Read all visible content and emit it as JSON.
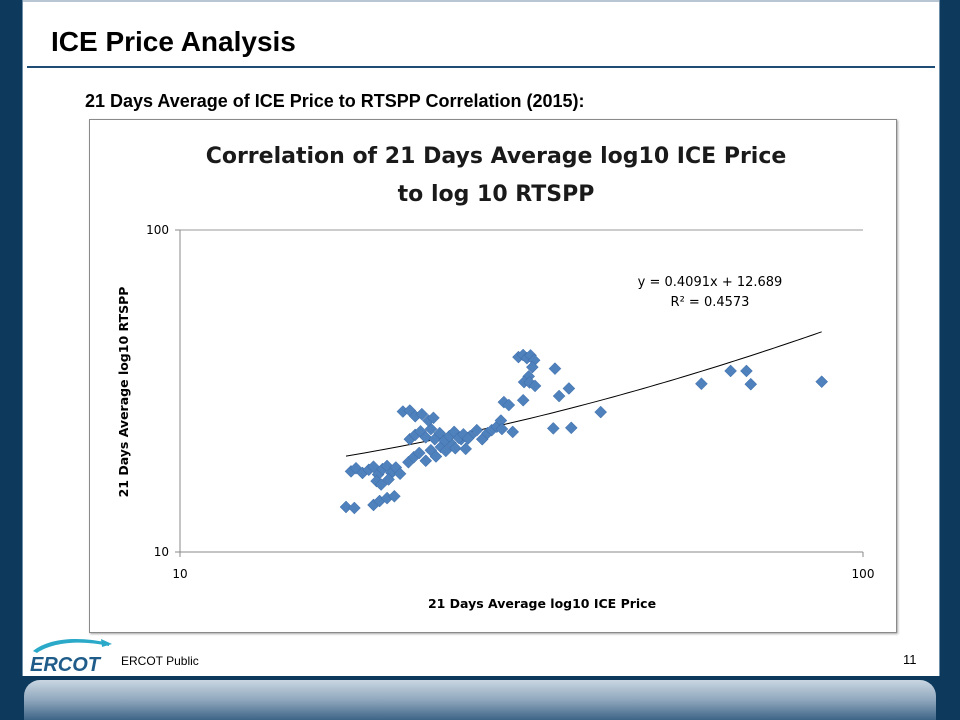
{
  "slide": {
    "title": "ICE Price Analysis",
    "subtitle": "21 Days Average of ICE Price to RTSPP Correlation (2015):",
    "footer_text": "ERCOT Public",
    "page_number": "11",
    "logo_text": "ERCOT"
  },
  "colors": {
    "background": "#0d3a5c",
    "title_rule": "#1f4d75",
    "marker": "#4f81bd",
    "trendline": "#000000"
  },
  "chart_data": {
    "type": "scatter",
    "title_lines": [
      "Correlation of 21 Days Average log10 ICE Price",
      "to log 10 RTSPP"
    ],
    "xlabel": "21 Days Average log10 ICE Price",
    "ylabel": "21 Days Average log10 RTSPP",
    "x_scale": "log",
    "y_scale": "log",
    "xlim": [
      10,
      100
    ],
    "ylim": [
      10,
      100
    ],
    "x_ticks": [
      "10",
      "100"
    ],
    "y_ticks": [
      "10",
      "100"
    ],
    "grid": "horizontal",
    "marker": "diamond",
    "trendline": {
      "slope": 0.4091,
      "intercept": 12.689,
      "x_range": [
        17.5,
        87
      ],
      "equation_label": "y = 0.4091x + 12.689",
      "r2_label": "R² = 0.4573"
    },
    "points": [
      [
        17.5,
        13.8
      ],
      [
        18.0,
        13.7
      ],
      [
        19.2,
        14.0
      ],
      [
        19.6,
        14.4
      ],
      [
        20.1,
        14.7
      ],
      [
        20.6,
        14.9
      ],
      [
        17.8,
        17.8
      ],
      [
        18.1,
        18.2
      ],
      [
        18.5,
        17.6
      ],
      [
        18.9,
        18.0
      ],
      [
        19.2,
        18.4
      ],
      [
        19.5,
        17.4
      ],
      [
        19.8,
        18.1
      ],
      [
        20.1,
        18.5
      ],
      [
        20.4,
        17.6
      ],
      [
        20.7,
        18.3
      ],
      [
        21.0,
        17.5
      ],
      [
        19.4,
        16.6
      ],
      [
        19.7,
        16.2
      ],
      [
        20.2,
        16.8
      ],
      [
        21.6,
        19.0
      ],
      [
        22.0,
        19.7
      ],
      [
        22.4,
        20.3
      ],
      [
        22.9,
        19.2
      ],
      [
        23.3,
        20.7
      ],
      [
        23.7,
        19.8
      ],
      [
        24.1,
        21.2
      ],
      [
        24.5,
        20.6
      ],
      [
        24.9,
        21.8
      ],
      [
        25.3,
        21.0
      ],
      [
        25.8,
        22.4
      ],
      [
        26.2,
        20.9
      ],
      [
        26.6,
        22.9
      ],
      [
        21.7,
        22.4
      ],
      [
        22.1,
        23.1
      ],
      [
        22.5,
        23.7
      ],
      [
        22.9,
        22.7
      ],
      [
        23.3,
        24.1
      ],
      [
        23.6,
        22.4
      ],
      [
        24.0,
        23.4
      ],
      [
        24.4,
        22.2
      ],
      [
        24.8,
        22.9
      ],
      [
        25.2,
        23.6
      ],
      [
        25.6,
        22.6
      ],
      [
        26.0,
        23.2
      ],
      [
        26.4,
        22.5
      ],
      [
        21.2,
        27.3
      ],
      [
        21.7,
        27.5
      ],
      [
        22.1,
        26.4
      ],
      [
        22.6,
        26.8
      ],
      [
        23.1,
        25.6
      ],
      [
        23.5,
        26.1
      ],
      [
        27.2,
        23.9
      ],
      [
        27.7,
        22.4
      ],
      [
        28.2,
        23.4
      ],
      [
        28.6,
        23.9
      ],
      [
        29.1,
        24.5
      ],
      [
        29.5,
        25.6
      ],
      [
        29.8,
        29.2
      ],
      [
        30.3,
        28.6
      ],
      [
        30.7,
        23.6
      ],
      [
        29.6,
        24.1
      ],
      [
        31.3,
        40.3
      ],
      [
        31.8,
        40.9
      ],
      [
        32.2,
        40.0
      ],
      [
        32.6,
        40.8
      ],
      [
        33.0,
        39.4
      ],
      [
        32.8,
        37.5
      ],
      [
        32.4,
        35.1
      ],
      [
        31.9,
        33.7
      ],
      [
        32.5,
        33.6
      ],
      [
        33.1,
        32.8
      ],
      [
        31.8,
        29.6
      ],
      [
        35.4,
        37.1
      ],
      [
        35.9,
        30.5
      ],
      [
        37.1,
        32.2
      ],
      [
        37.4,
        24.3
      ],
      [
        35.2,
        24.2
      ],
      [
        41.3,
        27.2
      ],
      [
        58.0,
        33.3
      ],
      [
        64.0,
        36.5
      ],
      [
        67.5,
        36.5
      ],
      [
        68.5,
        33.2
      ],
      [
        87.0,
        33.8
      ]
    ]
  }
}
